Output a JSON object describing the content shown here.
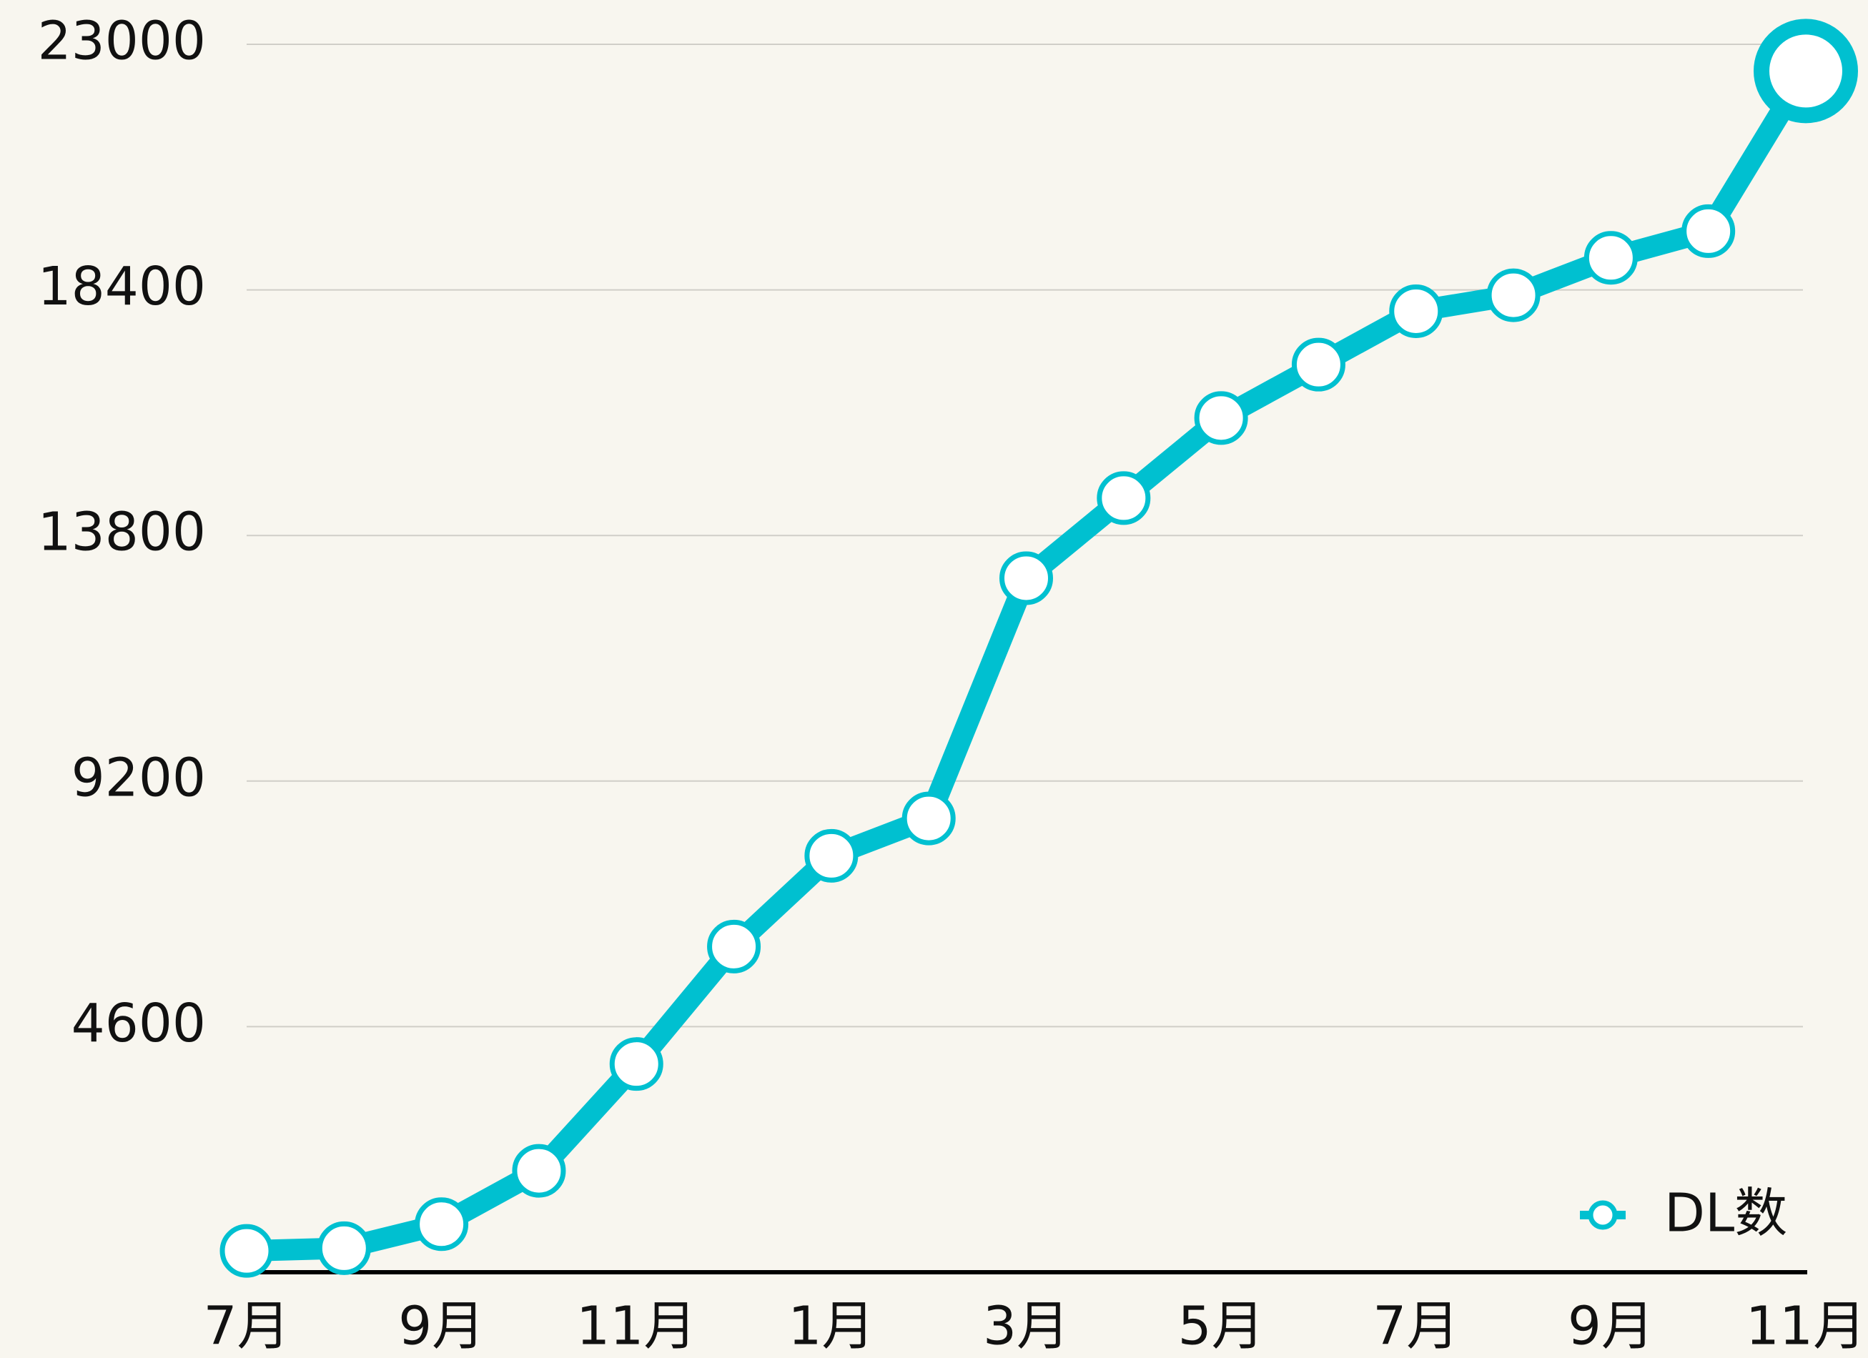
{
  "chart_data": {
    "type": "line",
    "categories": [
      "7月",
      null,
      "9月",
      null,
      "11月",
      null,
      "1月",
      null,
      "3月",
      null,
      "5月",
      null,
      "7月",
      null,
      "9月",
      null,
      "11月"
    ],
    "series": [
      {
        "name": "DL数",
        "color": "#00c0d0",
        "values": [
          400,
          450,
          900,
          1900,
          3900,
          6100,
          7800,
          8500,
          13000,
          14500,
          16000,
          17000,
          18000,
          18300,
          19000,
          19500,
          22500
        ]
      }
    ],
    "ylim": [
      0,
      23000
    ],
    "yticks": [
      4600,
      9200,
      13800,
      18400,
      23000
    ],
    "grid": true,
    "legend": "lower right"
  }
}
